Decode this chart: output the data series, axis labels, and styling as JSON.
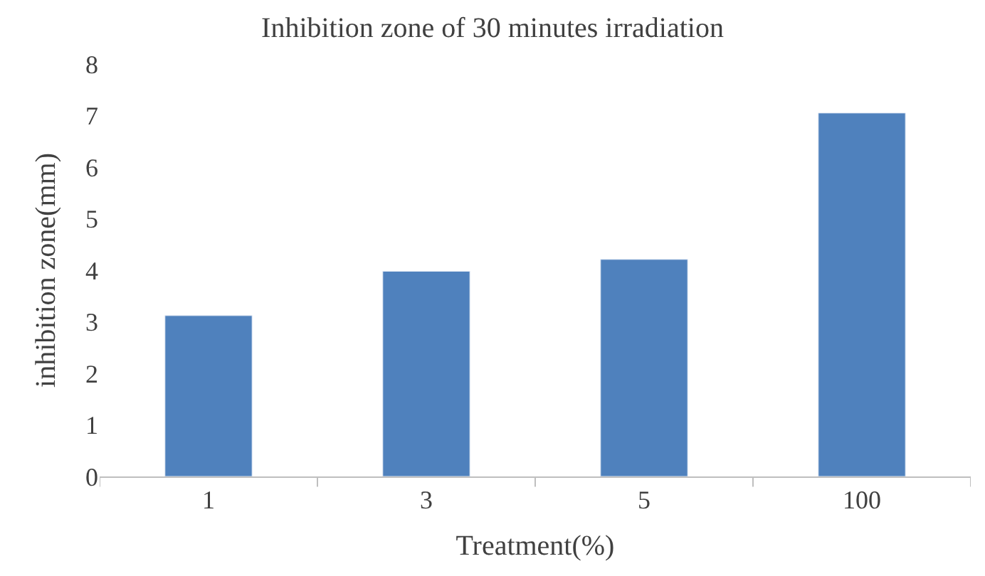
{
  "chart_data": {
    "type": "bar",
    "title": "Inhibition zone of 30 minutes irradiation",
    "xlabel": "Treatment(%)",
    "ylabel": "inhibition zone(mm)",
    "categories": [
      "1",
      "3",
      "5",
      "100"
    ],
    "series": [
      {
        "color": "#4f81bd",
        "values": [
          3.12,
          3.98,
          4.21,
          7.05
        ]
      }
    ],
    "ylim": [
      0,
      8
    ],
    "yticks": [
      0,
      1,
      2,
      3,
      4,
      5,
      6,
      7,
      8
    ],
    "grid": false
  }
}
